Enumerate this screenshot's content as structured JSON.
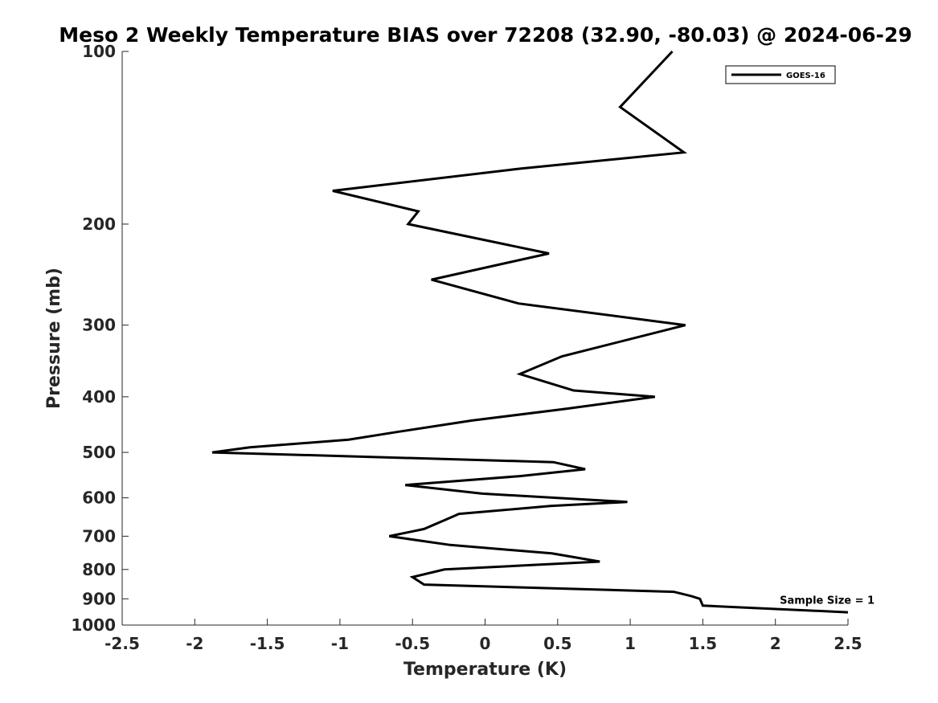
{
  "chart_data": {
    "type": "line",
    "title": "Meso 2 Weekly Temperature BIAS over 72208 (32.90, -80.03) @ 2024-06-29",
    "xlabel": "Temperature (K)",
    "ylabel": "Pressure (mb)",
    "xlim": [
      -2.5,
      2.5
    ],
    "ylim": [
      100,
      1000
    ],
    "yscale": "log",
    "y_reversed": true,
    "grid": false,
    "legend_position": "top-right",
    "x_ticks": [
      -2.5,
      -2,
      -1.5,
      -1,
      -0.5,
      0,
      0.5,
      1,
      1.5,
      2,
      2.5
    ],
    "x_tick_labels": [
      "-2.5",
      "-2",
      "-1.5",
      "-1",
      "-0.5",
      "0",
      "0.5",
      "1",
      "1.5",
      "2",
      "2.5"
    ],
    "y_ticks": [
      100,
      200,
      300,
      400,
      500,
      600,
      700,
      800,
      900,
      1000
    ],
    "y_tick_labels": [
      "100",
      "200",
      "300",
      "400",
      "500",
      "600",
      "700",
      "800",
      "900",
      "1000"
    ],
    "series": [
      {
        "name": "GOES-16",
        "color": "#000000",
        "points": [
          [
            1.29,
            100
          ],
          [
            0.93,
            125
          ],
          [
            1.37,
            150
          ],
          [
            0.25,
            160
          ],
          [
            -1.05,
            175
          ],
          [
            -0.46,
            190
          ],
          [
            -0.53,
            200
          ],
          [
            0.44,
            225
          ],
          [
            -0.37,
            250
          ],
          [
            0.23,
            275
          ],
          [
            1.38,
            300
          ],
          [
            0.53,
            340
          ],
          [
            0.24,
            365
          ],
          [
            0.61,
            390
          ],
          [
            1.17,
            400
          ],
          [
            0.55,
            420
          ],
          [
            -0.09,
            440
          ],
          [
            -0.59,
            460
          ],
          [
            -0.94,
            475
          ],
          [
            -1.62,
            490
          ],
          [
            -1.88,
            500
          ],
          [
            0.47,
            520
          ],
          [
            0.69,
            535
          ],
          [
            0.24,
            550
          ],
          [
            -0.55,
            570
          ],
          [
            -0.02,
            590
          ],
          [
            0.98,
            610
          ],
          [
            0.45,
            620
          ],
          [
            -0.18,
            640
          ],
          [
            -0.24,
            650
          ],
          [
            -0.42,
            680
          ],
          [
            -0.66,
            700
          ],
          [
            -0.24,
            725
          ],
          [
            0.46,
            750
          ],
          [
            0.79,
            775
          ],
          [
            -0.28,
            800
          ],
          [
            -0.5,
            825
          ],
          [
            -0.42,
            850
          ],
          [
            1.3,
            875
          ],
          [
            1.42,
            890
          ],
          [
            1.48,
            900
          ],
          [
            1.5,
            925
          ],
          [
            2.5,
            950
          ]
        ]
      }
    ],
    "annotations": [
      {
        "text": "Sample Size = 1",
        "x": 2.03,
        "y": 900
      }
    ]
  }
}
